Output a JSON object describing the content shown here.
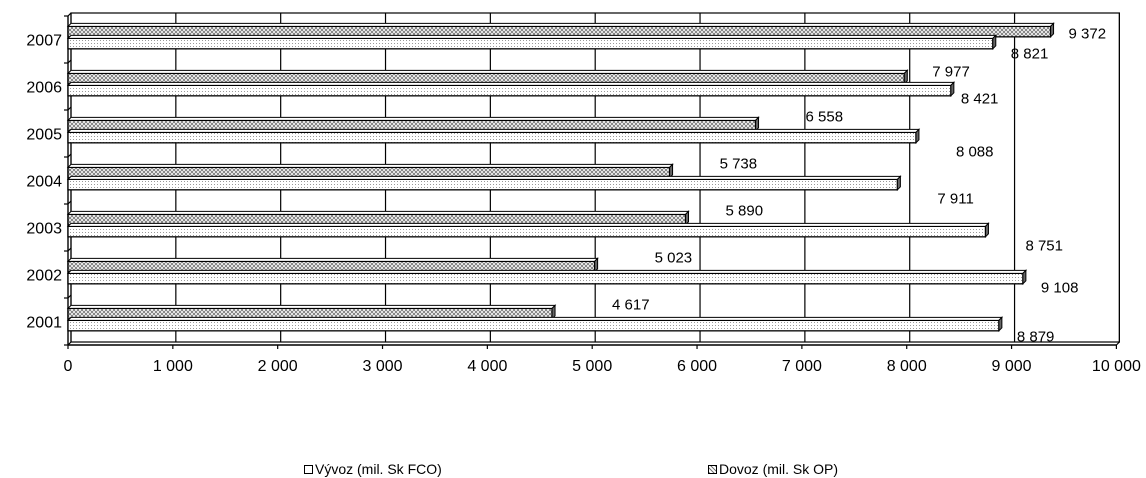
{
  "chart_data": {
    "type": "bar",
    "orientation": "horizontal",
    "title": "",
    "xlabel": "",
    "ylabel": "",
    "categories": [
      "2001",
      "2002",
      "2003",
      "2004",
      "2005",
      "2006",
      "2007"
    ],
    "series": [
      {
        "name": "Vývoz (mil. Sk FCO)",
        "values": [
          8879,
          9108,
          8751,
          7911,
          8088,
          8421,
          8821
        ],
        "labels": [
          "8 879",
          "9 108",
          "8 751",
          "7 911",
          "8 088",
          "8 421",
          "8 821"
        ],
        "fill": "#ffffff",
        "pattern": "dotted"
      },
      {
        "name": "Dovoz (mil. Sk OP)",
        "values": [
          4617,
          5023,
          5890,
          5738,
          6558,
          7977,
          9372
        ],
        "labels": [
          "4 617",
          "5 023",
          "5 890",
          "5 738",
          "6 558",
          "7 977",
          "9 372"
        ],
        "fill": "#ffffff",
        "pattern": "diagonal-crosshatch"
      }
    ],
    "xlim": [
      0,
      10000
    ],
    "xticks": [
      0,
      1000,
      2000,
      3000,
      4000,
      5000,
      6000,
      7000,
      8000,
      9000,
      10000
    ],
    "xtick_labels": [
      "0",
      "1 000",
      "2 000",
      "3 000",
      "4 000",
      "5 000",
      "6 000",
      "7 000",
      "8 000",
      "9 000",
      "10 000"
    ],
    "grid": true,
    "legend_position": "bottom",
    "style": "3d"
  }
}
